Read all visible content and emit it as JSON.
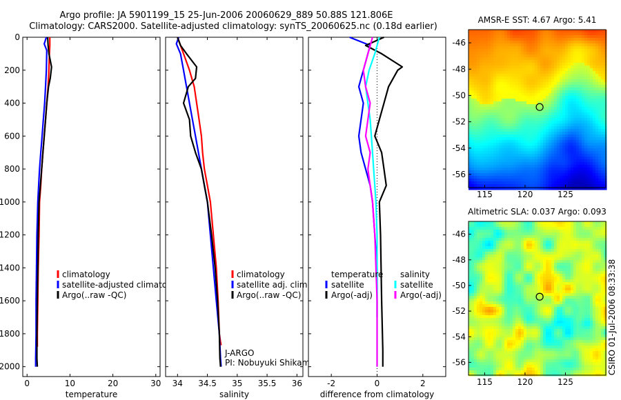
{
  "header": {
    "title_line1": "Argo profile: JA 5901199_15 25-Jun-2006 20060629_889 50.88S 121.806E",
    "title_line2": "Climatology: CARS2000. Satellite-adjusted climatology: synTS_20060625.nc (0.18d earlier)"
  },
  "colors": {
    "climatology": "#ff0000",
    "satellite": "#0000ff",
    "argo": "#000000",
    "salinity_satellite": "#00ffff",
    "salinity_argo": "#ff00ff"
  },
  "chart_data": [
    {
      "type": "line",
      "xlabel": "temperature",
      "ylabel": "",
      "xlim": [
        -1,
        31
      ],
      "ylim": [
        2060,
        0
      ],
      "xticks": [
        0,
        10,
        20,
        30
      ],
      "yticks": [
        0,
        200,
        400,
        600,
        800,
        1000,
        1200,
        1400,
        1600,
        1800,
        2000
      ],
      "legend": {
        "position": "lower-right",
        "entries": [
          "climatology",
          "satellite-adjusted climatolog",
          "Argo(..raw -QC)"
        ]
      },
      "series": [
        {
          "name": "climatology",
          "color": "#ff0000",
          "x": [
            5.3,
            5.3,
            5.2,
            5.1,
            4.9,
            4.6,
            4.3,
            4.0,
            3.7,
            3.4,
            3.2,
            2.9,
            2.8,
            2.6,
            2.5,
            2.4,
            2.4
          ],
          "y": [
            0,
            50,
            100,
            200,
            300,
            400,
            500,
            600,
            700,
            800,
            900,
            1000,
            1200,
            1400,
            1600,
            1800,
            1880
          ]
        },
        {
          "name": "satellite-adjusted climatolog",
          "color": "#0000ff",
          "x": [
            4.5,
            4.0,
            4.6,
            4.5,
            4.3,
            4.1,
            3.8,
            3.5,
            3.2,
            2.9,
            2.7,
            2.5,
            2.3,
            2.2,
            2.1,
            2.1,
            2.0,
            2.0
          ],
          "y": [
            0,
            40,
            80,
            200,
            300,
            400,
            500,
            600,
            700,
            800,
            900,
            1000,
            1200,
            1400,
            1600,
            1800,
            1950,
            2000
          ]
        },
        {
          "name": "Argo(..raw -QC)",
          "color": "#000000",
          "x": [
            4.8,
            4.9,
            5.1,
            5.7,
            5.4,
            5.0,
            4.6,
            4.3,
            4.0,
            3.7,
            3.4,
            3.1,
            2.8,
            2.6,
            2.5,
            2.4,
            2.3,
            2.3,
            2.4
          ],
          "y": [
            0,
            50,
            100,
            180,
            250,
            300,
            400,
            500,
            600,
            700,
            800,
            900,
            1000,
            1200,
            1400,
            1600,
            1800,
            1950,
            2000
          ]
        }
      ]
    },
    {
      "type": "line",
      "xlabel": "salinity",
      "ylabel": "",
      "xlim": [
        33.8,
        36.1
      ],
      "ylim": [
        2060,
        0
      ],
      "xticks": [
        34,
        34.5,
        35,
        35.5,
        36
      ],
      "yticks": [
        0,
        200,
        400,
        600,
        800,
        1000,
        1200,
        1400,
        1600,
        1800,
        2000
      ],
      "legend": {
        "position": "lower-right",
        "entries": [
          "climatology",
          "satellite adj. clim.",
          "Argo(..raw -QC)"
        ]
      },
      "annotations": [
        "J-ARGO",
        "PI: Nobuyuki Shikama"
      ],
      "series": [
        {
          "name": "climatology",
          "color": "#ff0000",
          "x": [
            34.0,
            34.05,
            34.1,
            34.2,
            34.28,
            34.32,
            34.36,
            34.4,
            34.42,
            34.45,
            34.5,
            34.55,
            34.6,
            34.65,
            34.68,
            34.7,
            34.72,
            34.73
          ],
          "y": [
            0,
            50,
            100,
            200,
            300,
            400,
            500,
            600,
            700,
            800,
            900,
            1000,
            1200,
            1400,
            1600,
            1800,
            1850,
            1870
          ]
        },
        {
          "name": "satellite adj. clim.",
          "color": "#0000ff",
          "x": [
            34.02,
            33.98,
            34.05,
            34.1,
            34.15,
            34.2,
            34.25,
            34.3,
            34.35,
            34.4,
            34.45,
            34.5,
            34.55,
            34.6,
            34.65,
            34.7,
            34.72,
            34.73
          ],
          "y": [
            0,
            40,
            100,
            200,
            300,
            400,
            500,
            600,
            700,
            800,
            900,
            1000,
            1200,
            1400,
            1600,
            1800,
            1950,
            2000
          ]
        },
        {
          "name": "Argo(..raw -QC)",
          "color": "#000000",
          "x": [
            34.0,
            34.05,
            34.15,
            34.32,
            34.3,
            34.18,
            34.1,
            34.2,
            34.22,
            34.3,
            34.4,
            34.45,
            34.5,
            34.57,
            34.63,
            34.67,
            34.7,
            34.71,
            34.72
          ],
          "y": [
            0,
            50,
            100,
            180,
            250,
            300,
            400,
            500,
            600,
            700,
            800,
            900,
            1000,
            1200,
            1400,
            1600,
            1800,
            1950,
            2000
          ]
        }
      ]
    },
    {
      "type": "line",
      "xlabel": "difference from climatology",
      "ylabel": "",
      "xlim": [
        -3,
        3
      ],
      "ylim": [
        2060,
        0
      ],
      "xticks": [
        -2,
        0,
        2
      ],
      "yticks": [
        0,
        200,
        400,
        600,
        800,
        1000,
        1200,
        1400,
        1600,
        1800,
        2000
      ],
      "legend": {
        "position": "lower-right",
        "entries": [
          "temperature",
          "satellite",
          "Argo(-adj)",
          "salinity",
          "satellite",
          "Argo(-adj)"
        ]
      },
      "series": [
        {
          "name": "satellite",
          "group": "temperature",
          "color": "#0000ff",
          "x": [
            -1.2,
            -0.3,
            -0.6,
            -0.8,
            -0.6,
            -0.7,
            -0.8,
            -0.7,
            -0.5,
            -0.3,
            -0.2,
            -0.1,
            0,
            0,
            0
          ],
          "y": [
            0,
            50,
            200,
            300,
            400,
            500,
            600,
            700,
            800,
            900,
            1000,
            1200,
            1400,
            1600,
            1700
          ]
        },
        {
          "name": "Argo(-adj)",
          "group": "temperature",
          "color": "#000000",
          "x": [
            0.3,
            -0.5,
            0.2,
            1.1,
            0.9,
            0.5,
            0.3,
            0.1,
            -0.1,
            0.2,
            0.3,
            0.4,
            0.1,
            0.15,
            0.2,
            0.25,
            0.25
          ],
          "y": [
            0,
            50,
            100,
            180,
            200,
            300,
            400,
            500,
            600,
            700,
            800,
            900,
            1000,
            1200,
            1600,
            1900,
            2000
          ]
        },
        {
          "name": "satellite",
          "group": "salinity",
          "color": "#00ffff",
          "x": [
            0.1,
            -0.1,
            -0.35,
            -0.5,
            -0.4,
            -0.3,
            -0.25,
            -0.2,
            -0.15,
            -0.1,
            -0.05,
            0,
            0,
            0
          ],
          "y": [
            0,
            100,
            200,
            300,
            400,
            500,
            600,
            700,
            800,
            900,
            1000,
            1200,
            1600,
            2000
          ]
        },
        {
          "name": "Argo(-adj)",
          "group": "salinity",
          "color": "#ff00ff",
          "x": [
            -0.2,
            -0.4,
            -0.6,
            -0.5,
            -0.3,
            -0.4,
            -0.5,
            -0.3,
            -0.4,
            -0.3,
            -0.2,
            -0.1,
            0,
            0
          ],
          "y": [
            0,
            100,
            200,
            300,
            400,
            500,
            600,
            700,
            800,
            900,
            1000,
            1200,
            1600,
            2000
          ]
        }
      ]
    },
    {
      "type": "heatmap",
      "title": "AMSR-E SST: 4.67 Argo: 5.41",
      "xlim": [
        113,
        130
      ],
      "ylim": [
        -57,
        -45
      ],
      "xticks": [
        115,
        120,
        125
      ],
      "yticks": [
        -46,
        -48,
        -50,
        -52,
        -54,
        -56
      ],
      "marker": {
        "lon": 121.806,
        "lat": -50.88
      }
    },
    {
      "type": "heatmap",
      "title": "Altimetric SLA: 0.037 Argo: 0.093",
      "xlim": [
        113,
        130
      ],
      "ylim": [
        -57,
        -45
      ],
      "xticks": [
        115,
        120,
        125
      ],
      "yticks": [
        -46,
        -48,
        -50,
        -52,
        -54,
        -56
      ],
      "marker": {
        "lon": 121.806,
        "lat": -50.88
      }
    }
  ],
  "side_label": "CSIRO 01-Jul-2006 08:33:38"
}
